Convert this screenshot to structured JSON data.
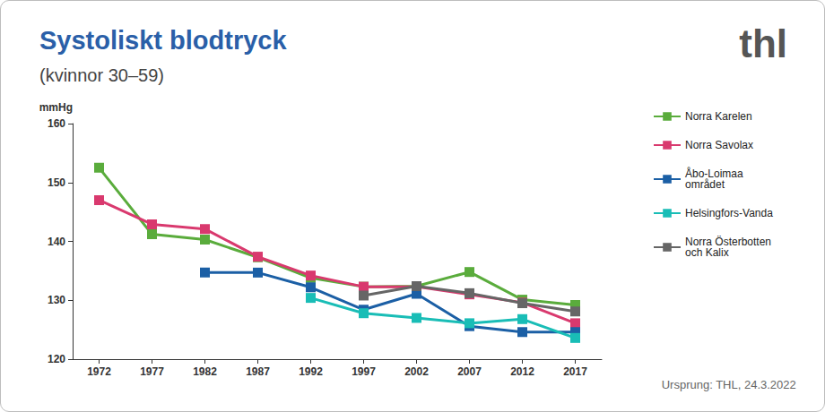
{
  "chart_data": {
    "type": "line",
    "title": "Systoliskt blodtryck",
    "subtitle": "(kvinnor 30–59)",
    "y_label": "mmHg",
    "logo": "thl",
    "source": "Ursprung: THL, 24.3.2022",
    "categories": [
      "1972",
      "1977",
      "1982",
      "1987",
      "1992",
      "1997",
      "2002",
      "2007",
      "2012",
      "2017"
    ],
    "series": [
      {
        "name": "Norra Karelen",
        "color": "#5aac3c",
        "values": [
          152.5,
          141.2,
          140.3,
          137.3,
          133.8,
          132.3,
          132.4,
          134.8,
          130.1,
          129.2
        ]
      },
      {
        "name": "Norra Savolax",
        "color": "#d9396e",
        "values": [
          147.0,
          142.9,
          142.1,
          137.4,
          134.2,
          132.3,
          132.3,
          131.0,
          129.6,
          126.1
        ]
      },
      {
        "name": "Åbo-Loimaa området",
        "color": "#1b5fa5",
        "values": [
          null,
          null,
          134.7,
          134.7,
          132.2,
          128.4,
          131.1,
          125.6,
          124.6,
          124.6
        ]
      },
      {
        "name": "Helsingfors-Vanda",
        "color": "#19bdb6",
        "values": [
          null,
          null,
          null,
          null,
          130.4,
          127.8,
          127.0,
          126.1,
          126.8,
          123.6
        ]
      },
      {
        "name": "Norra Österbotten och Kalix",
        "color": "#666666",
        "values": [
          null,
          null,
          null,
          null,
          null,
          130.8,
          132.4,
          131.2,
          129.5,
          128.1
        ]
      }
    ],
    "ylim": [
      120,
      160
    ],
    "yticks": [
      120,
      130,
      140,
      150,
      160
    ],
    "grid": false,
    "legend": "right",
    "marker": "square"
  }
}
